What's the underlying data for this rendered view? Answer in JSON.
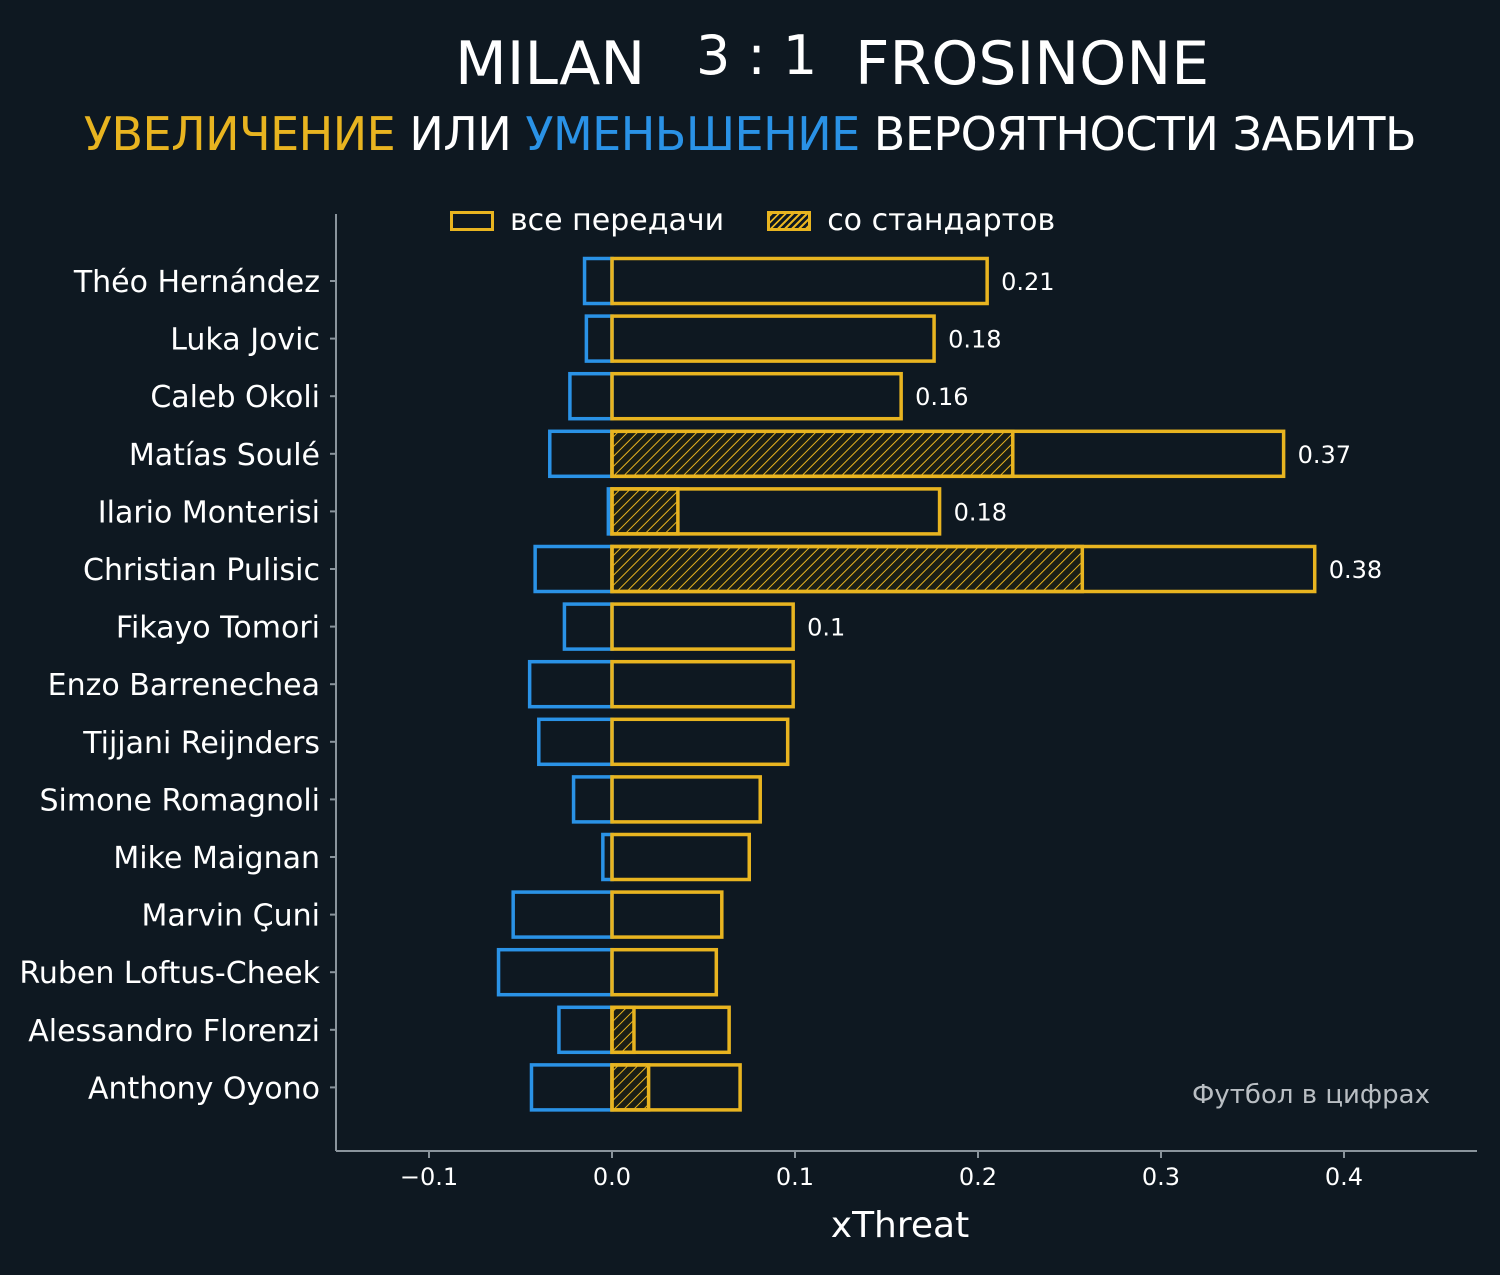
{
  "header": {
    "home_team": "MILAN",
    "score": "3 : 1",
    "away_team": "FROSINONE",
    "subtitle_increase": "УВЕЛИЧЕНИЕ",
    "subtitle_or": "ИЛИ",
    "subtitle_decrease": "УМЕНЬШЕНИЕ",
    "subtitle_rest": "ВЕРОЯТНОСТИ ЗАБИТЬ"
  },
  "legend": {
    "all_passes": "все передачи",
    "set_pieces": "со стандартов"
  },
  "watermark": "Футбол в цифрах",
  "colors": {
    "background": "#0e1821",
    "increase": "#e8b420",
    "decrease": "#2a92e6",
    "axis": "#8a949c"
  },
  "chart_data": {
    "type": "bar",
    "orientation": "horizontal",
    "xlabel": "xThreat",
    "xlim": [
      -0.15,
      0.475
    ],
    "xticks": [
      -0.1,
      0.0,
      0.1,
      0.2,
      0.3,
      0.4
    ],
    "xtick_labels": [
      "−0.1",
      "0.0",
      "0.1",
      "0.2",
      "0.3",
      "0.4"
    ],
    "legend_position": "top",
    "categories": [
      "Théo Hernández",
      "Luka Jovic",
      "Caleb Okoli",
      "Matías Soulé",
      "Ilario Monterisi",
      "Christian Pulisic",
      "Fikayo Tomori",
      "Enzo Barrenechea",
      "Tijjani Reijnders",
      "Simone Romagnoli",
      "Mike Maignan",
      "Marvin Çuni",
      "Ruben Loftus-Cheek",
      "Alessandro Florenzi",
      "Anthony Oyono"
    ],
    "series": [
      {
        "name": "все передачи",
        "values": [
          0.205,
          0.176,
          0.158,
          0.367,
          0.179,
          0.384,
          0.099,
          0.099,
          0.096,
          0.081,
          0.075,
          0.06,
          0.057,
          0.064,
          0.07
        ]
      },
      {
        "name": "со стандартов",
        "values": [
          0,
          0,
          0,
          0.219,
          0.036,
          0.257,
          0,
          0,
          0,
          0,
          0,
          0,
          0,
          0.012,
          0.02
        ]
      },
      {
        "name": "decrease",
        "values": [
          -0.015,
          -0.014,
          -0.023,
          -0.034,
          -0.002,
          -0.042,
          -0.026,
          -0.045,
          -0.04,
          -0.021,
          -0.005,
          -0.054,
          -0.062,
          -0.029,
          -0.044
        ]
      }
    ],
    "data_labels": [
      "0.21",
      "0.18",
      "0.16",
      "0.37",
      "0.18",
      "0.38",
      "0.1",
      "",
      "",
      "",
      "",
      "",
      "",
      "",
      ""
    ]
  }
}
